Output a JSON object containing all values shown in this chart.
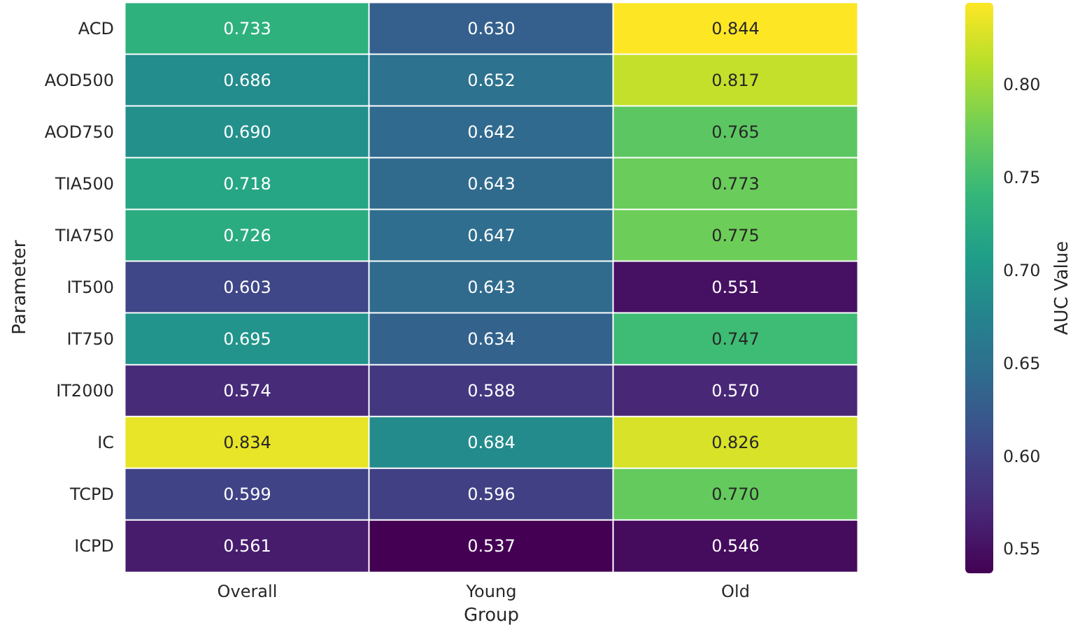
{
  "chart_data": {
    "type": "heatmap",
    "xlabel": "Group",
    "ylabel": "Parameter",
    "clabel": "AUC Value",
    "categories": [
      "Overall",
      "Young",
      "Old"
    ],
    "y_categories": [
      "ACD",
      "AOD500",
      "AOD750",
      "TIA500",
      "TIA750",
      "IT500",
      "IT750",
      "IT2000",
      "IC",
      "TCPD",
      "ICPD"
    ],
    "cells": [
      [
        0.733,
        0.63,
        0.844
      ],
      [
        0.686,
        0.652,
        0.817
      ],
      [
        0.69,
        0.642,
        0.765
      ],
      [
        0.718,
        0.643,
        0.773
      ],
      [
        0.726,
        0.647,
        0.775
      ],
      [
        0.603,
        0.643,
        0.551
      ],
      [
        0.695,
        0.634,
        0.747
      ],
      [
        0.574,
        0.588,
        0.57
      ],
      [
        0.834,
        0.684,
        0.826
      ],
      [
        0.599,
        0.596,
        0.77
      ],
      [
        0.561,
        0.537,
        0.546
      ]
    ],
    "cell_labels": [
      [
        "0.733",
        "0.630",
        "0.844"
      ],
      [
        "0.686",
        "0.652",
        "0.817"
      ],
      [
        "0.690",
        "0.642",
        "0.765"
      ],
      [
        "0.718",
        "0.643",
        "0.773"
      ],
      [
        "0.726",
        "0.647",
        "0.775"
      ],
      [
        "0.603",
        "0.643",
        "0.551"
      ],
      [
        "0.695",
        "0.634",
        "0.747"
      ],
      [
        "0.574",
        "0.588",
        "0.570"
      ],
      [
        "0.834",
        "0.684",
        "0.826"
      ],
      [
        "0.599",
        "0.596",
        "0.770"
      ],
      [
        "0.561",
        "0.537",
        "0.546"
      ]
    ],
    "clim": [
      0.537,
      0.844
    ],
    "cticks": [
      0.55,
      {
        "value": 0.6,
        "label": "0.60"
      },
      0.65,
      {
        "value": 0.7,
        "label": "0.70"
      },
      0.75,
      {
        "value": 0.8,
        "label": "0.80"
      }
    ],
    "data_labels": true
  }
}
